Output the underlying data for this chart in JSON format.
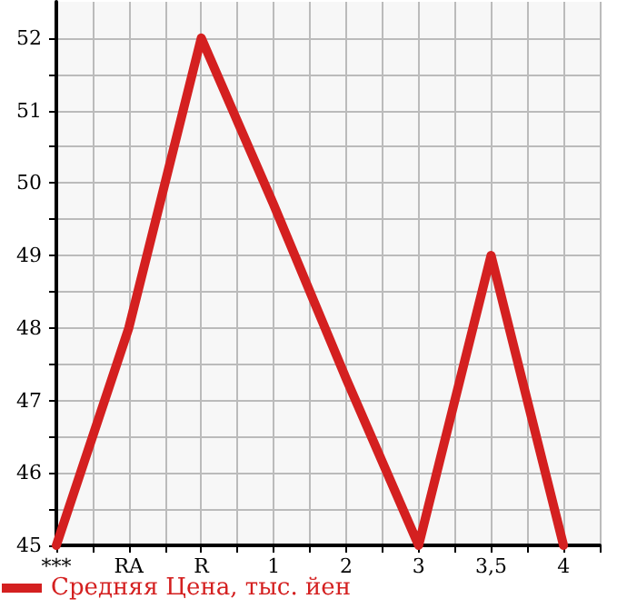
{
  "chart_data": {
    "type": "line",
    "categories": [
      "***",
      "RA",
      "R",
      "1",
      "2",
      "3",
      "3,5",
      "4"
    ],
    "series": [
      {
        "name": "Средняя Цена, тыс. йен",
        "color": "#d42020",
        "values": [
          45,
          48,
          52,
          49.7,
          47.3,
          45,
          49,
          45
        ]
      }
    ],
    "ylim": [
      45,
      52.5
    ],
    "yticks": [
      45,
      {
        "value": 45.5,
        "label": null
      },
      46,
      {
        "value": 46.5,
        "label": null
      },
      47,
      {
        "value": 47.5,
        "label": null
      },
      48,
      {
        "value": 48.5,
        "label": null
      },
      49,
      {
        "value": 49.5,
        "label": null
      },
      50,
      {
        "value": 50.5,
        "label": null
      },
      51,
      {
        "value": 51.5,
        "label": null
      },
      52
    ],
    "grid": true,
    "legend": "bottom left",
    "marker": "none",
    "line_style": "solid"
  }
}
